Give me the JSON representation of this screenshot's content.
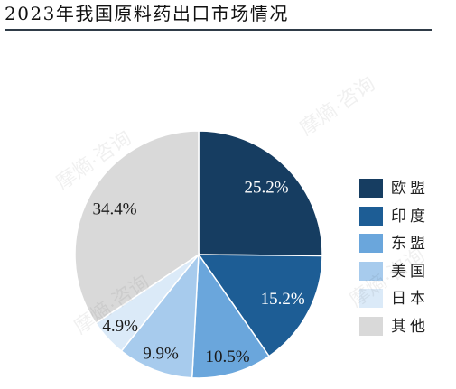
{
  "watermark": "摩熵·咨询",
  "chart_data": {
    "type": "pie",
    "title": "2023年我国原料药出口市场情况",
    "categories": [
      "欧盟",
      "印度",
      "东盟",
      "美国",
      "日本",
      "其他"
    ],
    "values": [
      25.2,
      15.2,
      10.5,
      9.9,
      4.9,
      34.4
    ],
    "data_labels": [
      "25.2%",
      "15.2%",
      "10.5%",
      "9.9%",
      "4.9%",
      "34.4%"
    ],
    "colors": [
      "#163d61",
      "#1d5d95",
      "#6aa6dc",
      "#a7cbed",
      "#dbeaf8",
      "#d9d9d9"
    ],
    "label_colors": [
      "#ffffff",
      "#ffffff",
      "#1a1a1a",
      "#1a1a1a",
      "#1a1a1a",
      "#1a1a1a"
    ],
    "legend": "right"
  }
}
